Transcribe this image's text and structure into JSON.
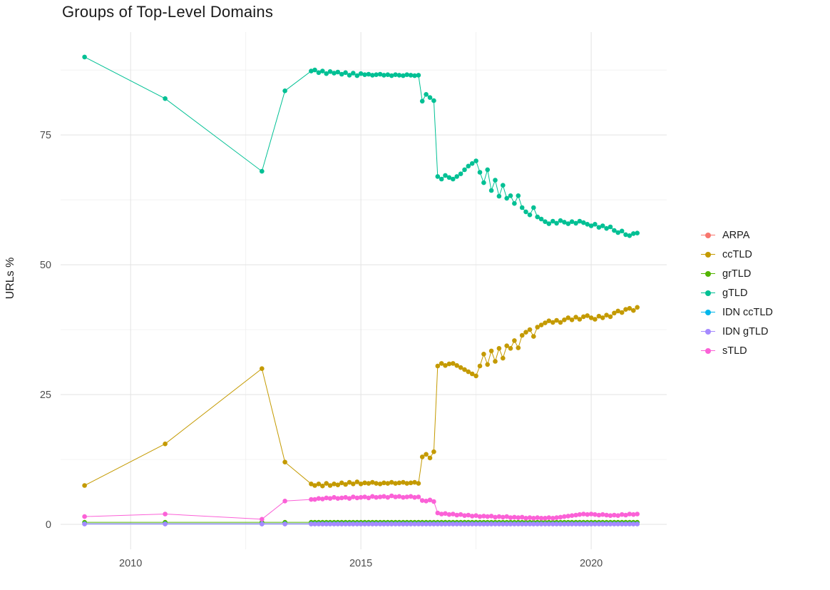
{
  "title": "Groups of Top-Level Domains",
  "axes": {
    "y_label": "URLs %",
    "x_ticks": [
      2010,
      2015,
      2020
    ],
    "x_minor": [
      2012.5,
      2017.5
    ],
    "y_ticks": [
      0,
      25,
      50,
      75
    ],
    "y_minor": [
      12.5,
      37.5,
      62.5,
      87.5
    ],
    "xlim": [
      2008.48,
      2021.64
    ],
    "ylim": [
      -4.8,
      94.8
    ]
  },
  "colors": {
    "grid_major": "#e3e3e3",
    "grid_minor": "#f0f0f0",
    "background": "#ffffff"
  },
  "chart_data": {
    "type": "line",
    "title": "Groups of Top-Level Domains",
    "xlabel": "",
    "ylabel": "URLs %",
    "grid": true,
    "legend_position": "right",
    "x": [
      2009.0,
      2010.75,
      2012.85,
      2013.35,
      2013.92,
      2014.0,
      2014.083,
      2014.167,
      2014.25,
      2014.333,
      2014.417,
      2014.5,
      2014.583,
      2014.667,
      2014.75,
      2014.833,
      2014.917,
      2015.0,
      2015.083,
      2015.167,
      2015.25,
      2015.333,
      2015.417,
      2015.5,
      2015.583,
      2015.667,
      2015.75,
      2015.833,
      2015.917,
      2016.0,
      2016.083,
      2016.167,
      2016.25,
      2016.333,
      2016.417,
      2016.5,
      2016.583,
      2016.667,
      2016.75,
      2016.833,
      2016.917,
      2017.0,
      2017.083,
      2017.167,
      2017.25,
      2017.333,
      2017.417,
      2017.5,
      2017.583,
      2017.667,
      2017.75,
      2017.833,
      2017.917,
      2018.0,
      2018.083,
      2018.167,
      2018.25,
      2018.333,
      2018.417,
      2018.5,
      2018.583,
      2018.667,
      2018.75,
      2018.833,
      2018.917,
      2019.0,
      2019.083,
      2019.167,
      2019.25,
      2019.333,
      2019.417,
      2019.5,
      2019.583,
      2019.667,
      2019.75,
      2019.833,
      2019.917,
      2020.0,
      2020.083,
      2020.167,
      2020.25,
      2020.333,
      2020.417,
      2020.5,
      2020.583,
      2020.667,
      2020.75,
      2020.833,
      2020.917,
      2021.0
    ],
    "series": [
      {
        "name": "ARPA",
        "color": "#F8766D",
        "constant": 0.15
      },
      {
        "name": "ccTLD",
        "color": "#C49A00",
        "values": [
          7.5,
          15.5,
          30.0,
          12.0,
          7.8,
          7.5,
          7.8,
          7.4,
          7.9,
          7.5,
          7.8,
          7.6,
          8.0,
          7.7,
          8.1,
          7.8,
          8.2,
          7.8,
          8.0,
          7.9,
          8.1,
          7.9,
          7.8,
          8.0,
          7.9,
          8.1,
          7.9,
          8.0,
          8.1,
          7.9,
          8.0,
          8.1,
          7.9,
          13.0,
          13.5,
          12.8,
          14.0,
          30.5,
          31.0,
          30.6,
          30.9,
          31.0,
          30.6,
          30.2,
          29.8,
          29.4,
          29.0,
          28.6,
          30.5,
          32.8,
          30.8,
          33.4,
          31.4,
          33.9,
          32.0,
          34.4,
          33.9,
          35.4,
          34.0,
          36.4,
          37.0,
          37.5,
          36.2,
          38.0,
          38.4,
          38.8,
          39.2,
          38.9,
          39.3,
          38.9,
          39.4,
          39.8,
          39.4,
          39.9,
          39.5,
          40.0,
          40.2,
          39.8,
          39.5,
          40.1,
          39.8,
          40.3,
          40.0,
          40.7,
          41.1,
          40.8,
          41.4,
          41.6,
          41.2,
          41.8
        ]
      },
      {
        "name": "grTLD",
        "color": "#53B400",
        "constant": 0.4
      },
      {
        "name": "gTLD",
        "color": "#00C094",
        "values": [
          90.0,
          82.0,
          68.0,
          83.5,
          87.3,
          87.5,
          87.0,
          87.3,
          86.8,
          87.2,
          86.9,
          87.1,
          86.7,
          87.0,
          86.5,
          86.9,
          86.4,
          86.8,
          86.6,
          86.7,
          86.5,
          86.6,
          86.7,
          86.5,
          86.6,
          86.4,
          86.6,
          86.5,
          86.4,
          86.6,
          86.5,
          86.4,
          86.5,
          81.5,
          82.8,
          82.2,
          81.6,
          67.0,
          66.5,
          67.2,
          66.8,
          66.5,
          67.0,
          67.5,
          68.3,
          69.0,
          69.5,
          70.0,
          67.8,
          65.8,
          68.3,
          64.3,
          66.3,
          63.2,
          65.3,
          62.8,
          63.3,
          61.8,
          63.3,
          61.0,
          60.2,
          59.6,
          61.0,
          59.2,
          58.8,
          58.3,
          57.9,
          58.4,
          58.0,
          58.5,
          58.2,
          57.9,
          58.3,
          58.0,
          58.4,
          58.1,
          57.8,
          57.5,
          57.8,
          57.2,
          57.5,
          57.0,
          57.3,
          56.6,
          56.2,
          56.5,
          55.8,
          55.6,
          56.0,
          56.1
        ]
      },
      {
        "name": "IDN ccTLD",
        "color": "#00B6EB",
        "constant": 0.12
      },
      {
        "name": "IDN gTLD",
        "color": "#A58AFF",
        "constant": 0.06
      },
      {
        "name": "sTLD",
        "color": "#FB61D7",
        "values": [
          1.5,
          2.0,
          1.0,
          4.5,
          4.8,
          4.8,
          5.0,
          4.9,
          5.1,
          5.0,
          5.2,
          5.0,
          5.1,
          5.2,
          5.0,
          5.3,
          5.1,
          5.2,
          5.3,
          5.1,
          5.4,
          5.2,
          5.3,
          5.4,
          5.2,
          5.5,
          5.3,
          5.4,
          5.2,
          5.3,
          5.4,
          5.2,
          5.3,
          4.6,
          4.5,
          4.7,
          4.4,
          2.2,
          2.0,
          2.1,
          1.9,
          2.0,
          1.8,
          1.9,
          1.7,
          1.8,
          1.6,
          1.7,
          1.5,
          1.6,
          1.5,
          1.6,
          1.4,
          1.5,
          1.4,
          1.5,
          1.3,
          1.4,
          1.3,
          1.4,
          1.2,
          1.3,
          1.2,
          1.3,
          1.2,
          1.2,
          1.3,
          1.2,
          1.3,
          1.4,
          1.5,
          1.6,
          1.7,
          1.8,
          1.9,
          2.0,
          1.9,
          2.0,
          1.9,
          1.8,
          1.9,
          1.8,
          1.7,
          1.8,
          1.7,
          1.9,
          1.8,
          2.0,
          1.9,
          2.0
        ]
      }
    ]
  }
}
